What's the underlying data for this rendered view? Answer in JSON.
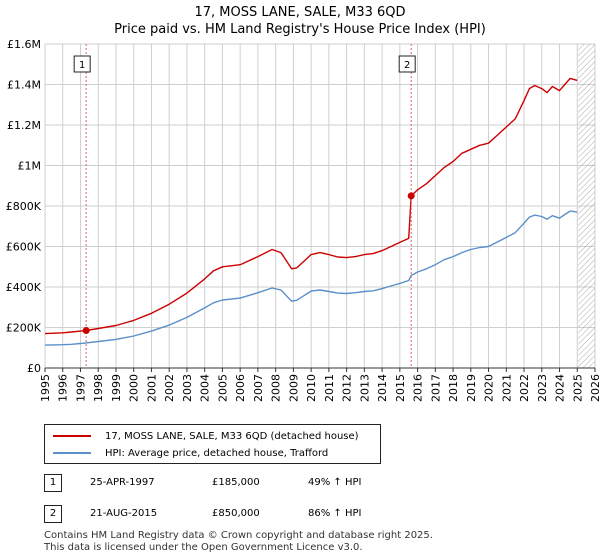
{
  "title_line1": "17, MOSS LANE, SALE, M33 6QD",
  "title_line2": "Price paid vs. HM Land Registry's House Price Index (HPI)",
  "colors": {
    "property": "#cc0000",
    "hpi": "#5b8fc9",
    "marker_line": "#e06070",
    "marker_shade": "#dfe8f4",
    "grid": "#cfcfcf",
    "hatch": "#888888"
  },
  "chart_data": {
    "type": "line",
    "xlim": [
      1995,
      2026
    ],
    "ylim": [
      0,
      1600000
    ],
    "x_ticks": [
      "1995",
      "1996",
      "1997",
      "1998",
      "1999",
      "2000",
      "2001",
      "2002",
      "2003",
      "2004",
      "2005",
      "2006",
      "2007",
      "2008",
      "2009",
      "2010",
      "2011",
      "2012",
      "2013",
      "2014",
      "2015",
      "2016",
      "2017",
      "2018",
      "2019",
      "2020",
      "2021",
      "2022",
      "2023",
      "2024",
      "2025",
      "2026"
    ],
    "y_ticks": [
      {
        "value": 0,
        "label": "£0"
      },
      {
        "value": 200000,
        "label": "£200K"
      },
      {
        "value": 400000,
        "label": "£400K"
      },
      {
        "value": 600000,
        "label": "£600K"
      },
      {
        "value": 800000,
        "label": "£800K"
      },
      {
        "value": 1000000,
        "label": "£1M"
      },
      {
        "value": 1200000,
        "label": "£1.2M"
      },
      {
        "value": 1400000,
        "label": "£1.4M"
      },
      {
        "value": 1600000,
        "label": "£1.6M"
      }
    ],
    "data_end_year": 2025.05,
    "series": [
      {
        "name": "17, MOSS LANE, SALE, M33 6QD (detached house)",
        "x": [
          1995,
          1995.5,
          1996,
          1996.5,
          1997,
          1997.32,
          1998,
          1999,
          2000,
          2001,
          2002,
          2003,
          2004,
          2004.5,
          2005,
          2006,
          2007,
          2007.8,
          2008.3,
          2008.9,
          2009.2,
          2009.5,
          2010,
          2010.5,
          2011,
          2011.5,
          2012,
          2012.5,
          2013,
          2013.5,
          2014,
          2014.5,
          2015,
          2015.5,
          2015.64,
          2016,
          2016.5,
          2017,
          2017.5,
          2018,
          2018.5,
          2019,
          2019.5,
          2020,
          2020.5,
          2021,
          2021.5,
          2022,
          2022.3,
          2022.6,
          2023,
          2023.3,
          2023.6,
          2024,
          2024.3,
          2024.6,
          2025
        ],
        "values": [
          170000,
          172000,
          174000,
          178000,
          182000,
          185000,
          195000,
          210000,
          235000,
          270000,
          315000,
          370000,
          440000,
          480000,
          500000,
          510000,
          550000,
          585000,
          570000,
          490000,
          495000,
          520000,
          560000,
          570000,
          560000,
          548000,
          545000,
          550000,
          560000,
          565000,
          580000,
          600000,
          620000,
          640000,
          850000,
          880000,
          910000,
          950000,
          990000,
          1020000,
          1060000,
          1080000,
          1100000,
          1110000,
          1150000,
          1190000,
          1230000,
          1320000,
          1380000,
          1395000,
          1380000,
          1360000,
          1390000,
          1370000,
          1400000,
          1430000,
          1420000
        ]
      },
      {
        "name": "HPI: Average price, detached house, Trafford",
        "x": [
          1995,
          1995.5,
          1996,
          1996.5,
          1997,
          1997.32,
          1998,
          1999,
          2000,
          2001,
          2002,
          2003,
          2004,
          2004.5,
          2005,
          2006,
          2007,
          2007.8,
          2008.3,
          2008.9,
          2009.2,
          2009.5,
          2010,
          2010.5,
          2011,
          2011.5,
          2012,
          2012.5,
          2013,
          2013.5,
          2014,
          2014.5,
          2015,
          2015.5,
          2015.64,
          2016,
          2016.5,
          2017,
          2017.5,
          2018,
          2018.5,
          2019,
          2019.5,
          2020,
          2020.5,
          2021,
          2021.5,
          2022,
          2022.3,
          2022.6,
          2023,
          2023.3,
          2023.6,
          2024,
          2024.3,
          2024.6,
          2025
        ],
        "values": [
          113000,
          114000,
          115000,
          117000,
          121000,
          124000,
          131000,
          141000,
          158000,
          182000,
          212000,
          250000,
          297000,
          322000,
          336000,
          345000,
          372000,
          395000,
          385000,
          330000,
          335000,
          352000,
          380000,
          385000,
          378000,
          370000,
          368000,
          372000,
          378000,
          381000,
          392000,
          405000,
          418000,
          432000,
          457000,
          474000,
          490000,
          510000,
          535000,
          550000,
          570000,
          585000,
          595000,
          600000,
          622000,
          645000,
          668000,
          715000,
          745000,
          755000,
          748000,
          735000,
          752000,
          740000,
          758000,
          775000,
          770000
        ]
      }
    ],
    "markers": [
      {
        "id": "1",
        "x": 1997.32,
        "value": 185000
      },
      {
        "id": "2",
        "x": 2015.64,
        "value": 850000
      }
    ]
  },
  "legend": [
    {
      "label": "17, MOSS LANE, SALE, M33 6QD (detached house)"
    },
    {
      "label": "HPI: Average price, detached house, Trafford"
    }
  ],
  "table": [
    {
      "id": "1",
      "date": "25-APR-1997",
      "price": "£185,000",
      "hpi": "49% ↑ HPI"
    },
    {
      "id": "2",
      "date": "21-AUG-2015",
      "price": "£850,000",
      "hpi": "86% ↑ HPI"
    }
  ],
  "footer_line1": "Contains HM Land Registry data © Crown copyright and database right 2025.",
  "footer_line2": "This data is licensed under the Open Government Licence v3.0."
}
